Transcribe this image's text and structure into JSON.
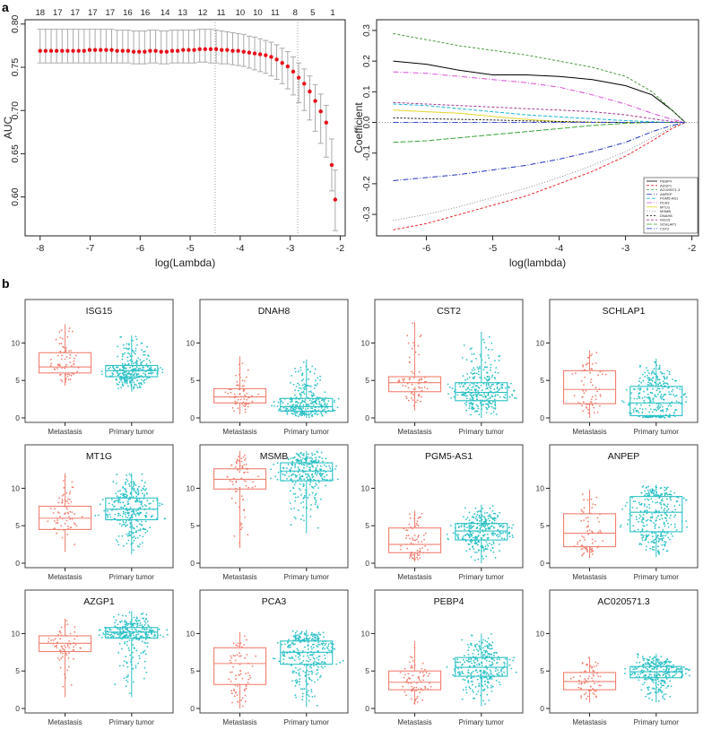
{
  "panel_labels": {
    "a": "a",
    "b": "b"
  },
  "colors": {
    "metastasis": "#f08070",
    "primary": "#2cc1c6",
    "auc_point": "#e8101a",
    "axis": "#222222",
    "box_frame": "#444444",
    "refline": "#999999"
  },
  "chart_data": [
    {
      "id": "auc_cv",
      "type": "scatter",
      "title": "",
      "xlabel": "log(Lambda)",
      "ylabel": "AUC",
      "xlim": [
        -8.3,
        -1.9
      ],
      "ylim": [
        0.555,
        0.805
      ],
      "xticks": [
        "-8",
        "-7",
        "-6",
        "-5",
        "-4",
        "-3",
        "-2"
      ],
      "yticks": [
        "0.60",
        "0.65",
        "0.70",
        "0.75",
        "0.80"
      ],
      "top_counts": [
        {
          "x": -8.0,
          "label": "18"
        },
        {
          "x": -7.65,
          "label": "17"
        },
        {
          "x": -7.3,
          "label": "17"
        },
        {
          "x": -6.95,
          "label": "17"
        },
        {
          "x": -6.6,
          "label": "17"
        },
        {
          "x": -6.25,
          "label": "16"
        },
        {
          "x": -5.9,
          "label": "16"
        },
        {
          "x": -5.5,
          "label": "14"
        },
        {
          "x": -5.15,
          "label": "13"
        },
        {
          "x": -4.75,
          "label": "12"
        },
        {
          "x": -4.38,
          "label": "11"
        },
        {
          "x": -4.0,
          "label": "10"
        },
        {
          "x": -3.65,
          "label": "10"
        },
        {
          "x": -3.3,
          "label": "11"
        },
        {
          "x": -2.9,
          "label": "8"
        },
        {
          "x": -2.55,
          "label": "5"
        },
        {
          "x": -2.15,
          "label": "1"
        }
      ],
      "vlines": [
        -4.5,
        -2.85
      ],
      "series": [
        {
          "name": "AUC",
          "x": [
            -8.0,
            -7.89,
            -7.78,
            -7.67,
            -7.56,
            -7.45,
            -7.34,
            -7.23,
            -7.12,
            -7.01,
            -6.9,
            -6.79,
            -6.68,
            -6.57,
            -6.46,
            -6.35,
            -6.24,
            -6.13,
            -6.02,
            -5.91,
            -5.8,
            -5.69,
            -5.58,
            -5.47,
            -5.36,
            -5.25,
            -5.14,
            -5.03,
            -4.92,
            -4.81,
            -4.7,
            -4.59,
            -4.48,
            -4.37,
            -4.26,
            -4.15,
            -4.04,
            -3.93,
            -3.82,
            -3.71,
            -3.6,
            -3.49,
            -3.38,
            -3.27,
            -3.16,
            -3.05,
            -2.94,
            -2.83,
            -2.72,
            -2.61,
            -2.5,
            -2.39,
            -2.28,
            -2.17,
            -2.1
          ],
          "values": [
            0.769,
            0.769,
            0.769,
            0.769,
            0.769,
            0.769,
            0.769,
            0.769,
            0.769,
            0.77,
            0.77,
            0.77,
            0.77,
            0.77,
            0.769,
            0.769,
            0.769,
            0.768,
            0.768,
            0.768,
            0.769,
            0.769,
            0.768,
            0.768,
            0.769,
            0.769,
            0.77,
            0.77,
            0.77,
            0.771,
            0.771,
            0.771,
            0.771,
            0.77,
            0.77,
            0.769,
            0.769,
            0.768,
            0.767,
            0.766,
            0.765,
            0.764,
            0.762,
            0.759,
            0.755,
            0.751,
            0.745,
            0.738,
            0.731,
            0.722,
            0.711,
            0.699,
            0.686,
            0.637,
            0.597
          ],
          "lower": [
            0.755,
            0.755,
            0.755,
            0.755,
            0.755,
            0.755,
            0.755,
            0.755,
            0.755,
            0.755,
            0.755,
            0.755,
            0.755,
            0.755,
            0.755,
            0.755,
            0.755,
            0.754,
            0.754,
            0.754,
            0.755,
            0.755,
            0.754,
            0.754,
            0.755,
            0.755,
            0.755,
            0.755,
            0.755,
            0.756,
            0.756,
            0.755,
            0.755,
            0.754,
            0.754,
            0.753,
            0.752,
            0.751,
            0.749,
            0.747,
            0.745,
            0.743,
            0.74,
            0.736,
            0.731,
            0.725,
            0.718,
            0.709,
            0.7,
            0.689,
            0.676,
            0.662,
            0.646,
            0.607,
            0.561
          ],
          "upper": [
            0.794,
            0.794,
            0.794,
            0.794,
            0.794,
            0.794,
            0.794,
            0.794,
            0.794,
            0.794,
            0.794,
            0.794,
            0.794,
            0.794,
            0.793,
            0.793,
            0.793,
            0.792,
            0.792,
            0.792,
            0.793,
            0.793,
            0.792,
            0.792,
            0.793,
            0.793,
            0.793,
            0.793,
            0.793,
            0.794,
            0.794,
            0.794,
            0.793,
            0.792,
            0.791,
            0.79,
            0.789,
            0.788,
            0.786,
            0.785,
            0.783,
            0.781,
            0.779,
            0.776,
            0.772,
            0.768,
            0.762,
            0.755,
            0.748,
            0.74,
            0.73,
            0.719,
            0.706,
            0.667,
            0.631
          ]
        }
      ]
    },
    {
      "id": "lasso_path",
      "type": "line",
      "title": "",
      "xlabel": "log(lambda)",
      "ylabel": "Coefficient",
      "xlim": [
        -6.75,
        -1.9
      ],
      "ylim": [
        -0.37,
        0.335
      ],
      "xticks": [
        "-6",
        "-5",
        "-4",
        "-3",
        "-2"
      ],
      "yticks": [
        "-0.3",
        "-0.2",
        "-0.1",
        "0.0",
        "0.1",
        "0.2",
        "0.3"
      ],
      "legend_position": "bottom-right",
      "x": [
        -6.5,
        -6.0,
        -5.5,
        -5.0,
        -4.5,
        -4.0,
        -3.5,
        -3.0,
        -2.6,
        -2.3,
        -2.1
      ],
      "series": [
        {
          "name": "PEBP4",
          "color": "#000000",
          "dash": "none",
          "values": [
            0.2,
            0.19,
            0.17,
            0.155,
            0.155,
            0.15,
            0.14,
            0.12,
            0.09,
            0.04,
            0.0
          ]
        },
        {
          "name": "AZGP1",
          "color": "#e6262a",
          "dash": "3,2",
          "values": [
            -0.35,
            -0.33,
            -0.3,
            -0.27,
            -0.24,
            -0.2,
            -0.16,
            -0.11,
            -0.06,
            -0.02,
            0.0
          ]
        },
        {
          "name": "AC020571.3",
          "color": "#4b9b3f",
          "dash": "3,2",
          "values": [
            0.29,
            0.27,
            0.25,
            0.235,
            0.22,
            0.2,
            0.18,
            0.15,
            0.1,
            0.04,
            0.0
          ]
        },
        {
          "name": "ANPEP",
          "color": "#2233bb",
          "dash": "6,2,1,2",
          "values": [
            -0.19,
            -0.18,
            -0.17,
            -0.155,
            -0.14,
            -0.12,
            -0.095,
            -0.065,
            -0.03,
            -0.01,
            0.0
          ]
        },
        {
          "name": "PGM5-AS1",
          "color": "#18b7d6",
          "dash": "4,2",
          "values": [
            0.06,
            0.055,
            0.045,
            0.035,
            0.025,
            0.018,
            0.012,
            0.006,
            0.002,
            0.0,
            0.0
          ]
        },
        {
          "name": "PCA3",
          "color": "#d84fd8",
          "dash": "6,2,1,2",
          "values": [
            0.165,
            0.16,
            0.15,
            0.14,
            0.13,
            0.115,
            0.09,
            0.06,
            0.03,
            0.01,
            0.0
          ]
        },
        {
          "name": "MT1G",
          "color": "#e0d52a",
          "dash": "none",
          "values": [
            0.04,
            0.035,
            0.03,
            0.02,
            0.01,
            0.003,
            0.0,
            0.0,
            0.0,
            0.0,
            0.0
          ]
        },
        {
          "name": "MSMB",
          "color": "#888888",
          "dash": "1,2",
          "values": [
            -0.32,
            -0.3,
            -0.275,
            -0.245,
            -0.215,
            -0.18,
            -0.14,
            -0.095,
            -0.05,
            -0.015,
            0.0
          ]
        },
        {
          "name": "DNAH8",
          "color": "#000000",
          "dash": "2,2",
          "values": [
            0.015,
            0.012,
            0.01,
            0.008,
            0.005,
            0.003,
            0.001,
            0.0,
            0.0,
            0.0,
            0.0
          ]
        },
        {
          "name": "ISG15",
          "color": "#a63a8f",
          "dash": "3,2",
          "values": [
            0.065,
            0.06,
            0.055,
            0.05,
            0.045,
            0.04,
            0.035,
            0.025,
            0.012,
            0.003,
            0.0
          ]
        },
        {
          "name": "SCHLAP1",
          "color": "#3aa23a",
          "dash": "6,2",
          "values": [
            -0.065,
            -0.06,
            -0.05,
            -0.04,
            -0.03,
            -0.02,
            -0.01,
            -0.003,
            0.0,
            0.0,
            0.0
          ]
        },
        {
          "name": "CST2",
          "color": "#3c4fd6",
          "dash": "6,2,1,2",
          "values": [
            0.0,
            0.0,
            0.0,
            0.0,
            0.0,
            0.0,
            0.0,
            0.0,
            0.0,
            0.0,
            0.0
          ]
        }
      ]
    },
    {
      "id": "expression_boxplots",
      "type": "box",
      "categories": [
        "Metastasis",
        "Primary tumor"
      ],
      "yticks": [
        "0",
        "5",
        "10"
      ],
      "ylim": [
        -0.6,
        15.8
      ],
      "panels": [
        {
          "gene": "ISG15",
          "metastasis": {
            "min": 4.3,
            "q1": 6.0,
            "median": 6.8,
            "q3": 8.7,
            "max": 12.5
          },
          "primary": {
            "min": 3.5,
            "q1": 5.5,
            "median": 6.3,
            "q3": 7.0,
            "max": 11.0
          }
        },
        {
          "gene": "DNAH8",
          "metastasis": {
            "min": 0.5,
            "q1": 2.0,
            "median": 2.8,
            "q3": 3.9,
            "max": 8.2
          },
          "primary": {
            "min": 0.0,
            "q1": 0.9,
            "median": 1.5,
            "q3": 2.6,
            "max": 7.8
          }
        },
        {
          "gene": "CST2",
          "metastasis": {
            "min": 1.0,
            "q1": 3.5,
            "median": 4.7,
            "q3": 5.5,
            "max": 12.8
          },
          "primary": {
            "min": 0.0,
            "q1": 2.3,
            "median": 3.4,
            "q3": 4.7,
            "max": 11.5
          }
        },
        {
          "gene": "SCHLAP1",
          "metastasis": {
            "min": 0.0,
            "q1": 1.9,
            "median": 3.8,
            "q3": 6.3,
            "max": 9.0
          },
          "primary": {
            "min": 0.0,
            "q1": 0.3,
            "median": 2.0,
            "q3": 4.2,
            "max": 7.9
          }
        },
        {
          "gene": "MT1G",
          "metastasis": {
            "min": 1.5,
            "q1": 4.5,
            "median": 6.0,
            "q3": 7.6,
            "max": 12.0
          },
          "primary": {
            "min": 1.2,
            "q1": 5.8,
            "median": 7.2,
            "q3": 8.7,
            "max": 12.0
          }
        },
        {
          "gene": "MSMB",
          "metastasis": {
            "min": 2.0,
            "q1": 9.9,
            "median": 11.2,
            "q3": 12.6,
            "max": 15.0
          },
          "primary": {
            "min": 4.0,
            "q1": 11.0,
            "median": 12.3,
            "q3": 13.4,
            "max": 15.0
          }
        },
        {
          "gene": "PGM5-AS1",
          "metastasis": {
            "min": 0.2,
            "q1": 1.4,
            "median": 2.5,
            "q3": 4.7,
            "max": 7.0
          },
          "primary": {
            "min": 0.0,
            "q1": 3.1,
            "median": 4.3,
            "q3": 5.3,
            "max": 7.8
          }
        },
        {
          "gene": "ANPEP",
          "metastasis": {
            "min": 0.8,
            "q1": 2.2,
            "median": 4.0,
            "q3": 6.6,
            "max": 9.8
          },
          "primary": {
            "min": 0.8,
            "q1": 4.2,
            "median": 6.8,
            "q3": 8.9,
            "max": 10.5
          }
        },
        {
          "gene": "AZGP1",
          "metastasis": {
            "min": 1.5,
            "q1": 7.6,
            "median": 8.7,
            "q3": 9.7,
            "max": 12.0
          },
          "primary": {
            "min": 1.5,
            "q1": 9.4,
            "median": 10.2,
            "q3": 10.8,
            "max": 13.0
          }
        },
        {
          "gene": "PCA3",
          "metastasis": {
            "min": 0.0,
            "q1": 3.2,
            "median": 6.0,
            "q3": 8.1,
            "max": 10.2
          },
          "primary": {
            "min": 0.2,
            "q1": 5.9,
            "median": 7.5,
            "q3": 9.0,
            "max": 10.5
          }
        },
        {
          "gene": "PEBP4",
          "metastasis": {
            "min": 0.5,
            "q1": 2.5,
            "median": 3.5,
            "q3": 5.0,
            "max": 9.0
          },
          "primary": {
            "min": 0.3,
            "q1": 4.3,
            "median": 5.5,
            "q3": 6.8,
            "max": 10.0
          }
        },
        {
          "gene": "AC020571.3",
          "metastasis": {
            "min": 0.8,
            "q1": 2.5,
            "median": 3.6,
            "q3": 4.8,
            "max": 6.8
          },
          "primary": {
            "min": 0.8,
            "q1": 4.1,
            "median": 4.9,
            "q3": 5.6,
            "max": 7.3
          }
        }
      ]
    }
  ]
}
